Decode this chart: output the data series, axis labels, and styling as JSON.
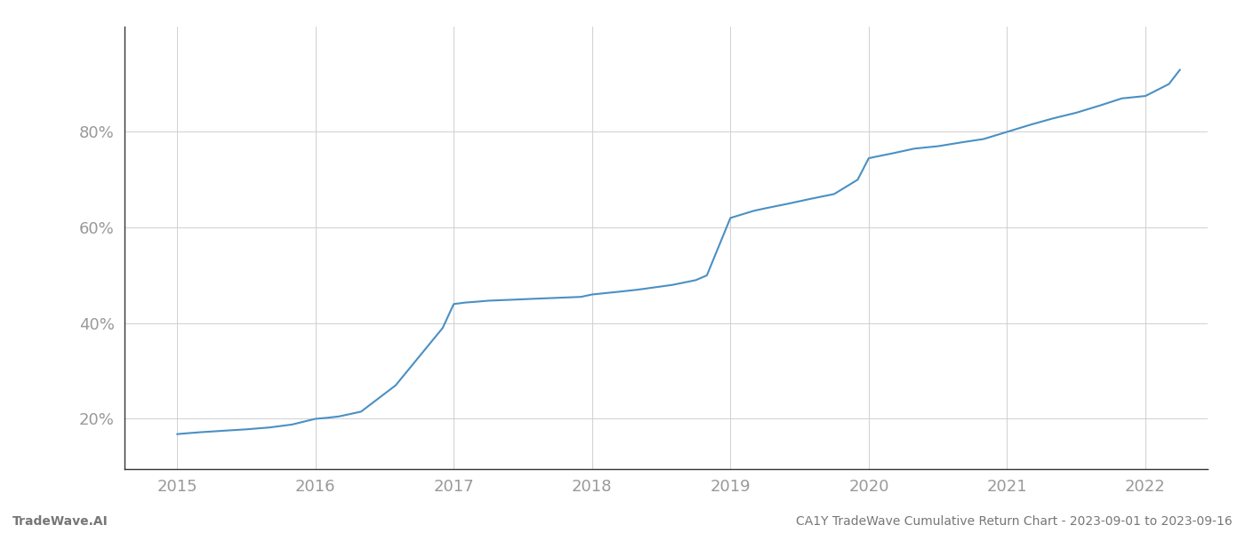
{
  "x_values": [
    2015.0,
    2015.08,
    2015.17,
    2015.33,
    2015.5,
    2015.67,
    2015.83,
    2016.0,
    2016.08,
    2016.17,
    2016.33,
    2016.58,
    2016.75,
    2016.92,
    2017.0,
    2017.08,
    2017.17,
    2017.25,
    2017.42,
    2017.58,
    2017.75,
    2017.92,
    2018.0,
    2018.17,
    2018.33,
    2018.58,
    2018.75,
    2018.83,
    2019.0,
    2019.17,
    2019.25,
    2019.42,
    2019.58,
    2019.75,
    2019.92,
    2020.0,
    2020.17,
    2020.33,
    2020.5,
    2020.67,
    2020.83,
    2021.0,
    2021.17,
    2021.33,
    2021.5,
    2021.67,
    2021.83,
    2022.0,
    2022.17,
    2022.25
  ],
  "y_values": [
    0.168,
    0.17,
    0.172,
    0.175,
    0.178,
    0.182,
    0.188,
    0.2,
    0.202,
    0.205,
    0.215,
    0.27,
    0.33,
    0.39,
    0.44,
    0.443,
    0.445,
    0.447,
    0.449,
    0.451,
    0.453,
    0.455,
    0.46,
    0.465,
    0.47,
    0.48,
    0.49,
    0.5,
    0.62,
    0.635,
    0.64,
    0.65,
    0.66,
    0.67,
    0.7,
    0.745,
    0.755,
    0.765,
    0.77,
    0.778,
    0.785,
    0.8,
    0.815,
    0.828,
    0.84,
    0.855,
    0.87,
    0.875,
    0.9,
    0.93
  ],
  "line_color": "#4a90c4",
  "line_width": 1.5,
  "xlim": [
    2014.62,
    2022.45
  ],
  "ylim": [
    0.095,
    1.02
  ],
  "ytick_values": [
    0.2,
    0.4,
    0.6,
    0.8
  ],
  "ytick_labels": [
    "20%",
    "40%",
    "60%",
    "80%"
  ],
  "xtick_values": [
    2015,
    2016,
    2017,
    2018,
    2019,
    2020,
    2021,
    2022
  ],
  "xtick_labels": [
    "2015",
    "2016",
    "2017",
    "2018",
    "2019",
    "2020",
    "2021",
    "2022"
  ],
  "footer_left": "TradeWave.AI",
  "footer_right": "CA1Y TradeWave Cumulative Return Chart - 2023-09-01 to 2023-09-16",
  "background_color": "#ffffff",
  "grid_color": "#d0d0d0",
  "tick_label_color": "#999999",
  "footer_color": "#777777",
  "left_spine_color": "#333333",
  "bottom_spine_color": "#333333"
}
